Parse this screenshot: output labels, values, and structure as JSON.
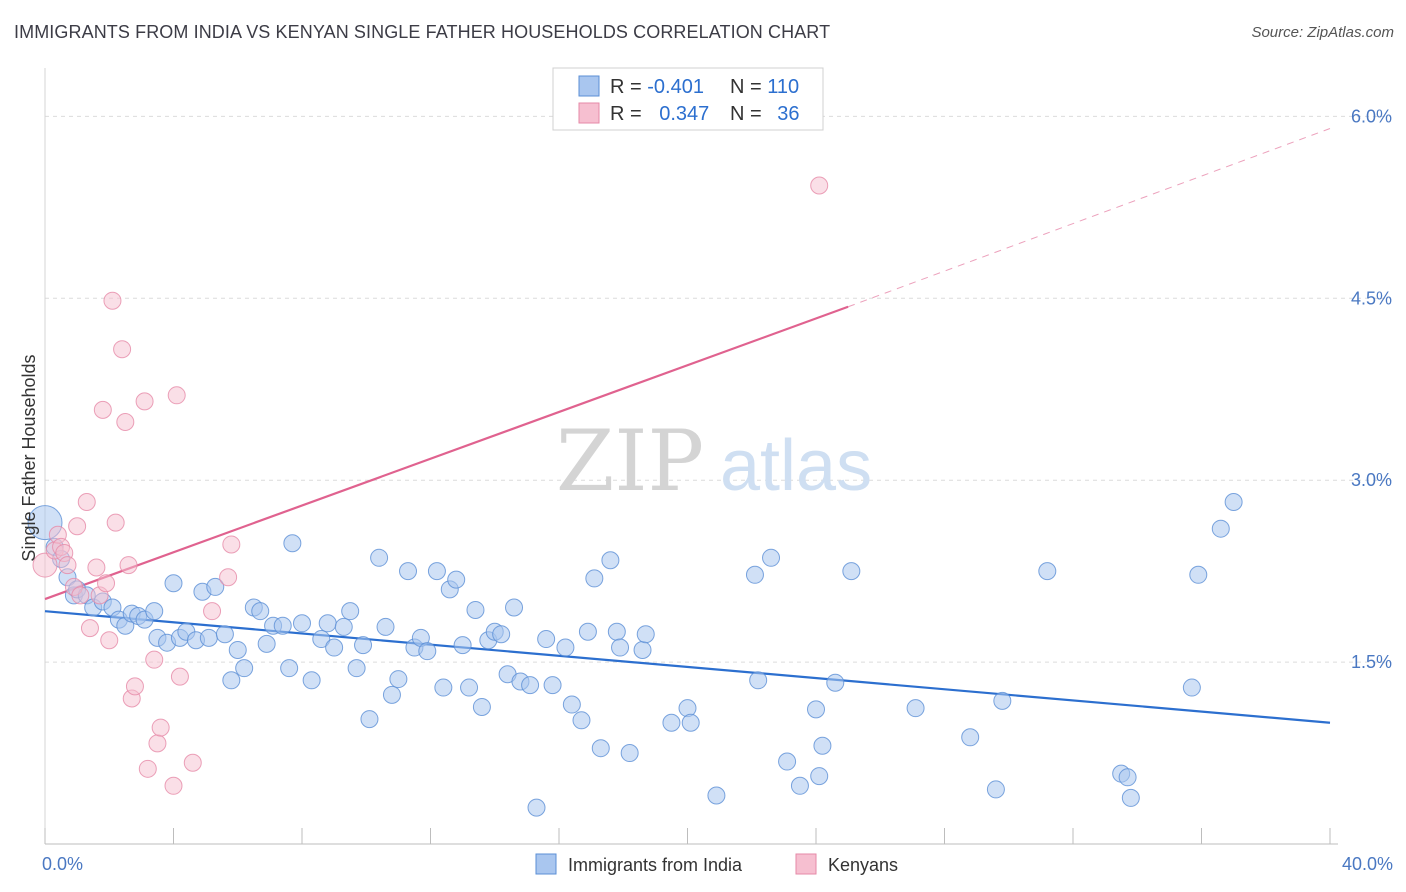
{
  "title": "IMMIGRANTS FROM INDIA VS KENYAN SINGLE FATHER HOUSEHOLDS CORRELATION CHART",
  "source": "Source: ZipAtlas.com",
  "watermark": {
    "zip": "ZIP",
    "atlas": "atlas"
  },
  "colors": {
    "blue_fill": "#a9c6ef",
    "blue_stroke": "#5b8fd6",
    "blue_line": "#2c6fcf",
    "pink_fill": "#f6bfd0",
    "pink_stroke": "#e68aa7",
    "pink_line": "#e0628f",
    "tick_text": "#4a78c2",
    "grid": "#dcdcdc"
  },
  "legend": {
    "rows": [
      {
        "r_label": "R = ",
        "r_value": "-0.401",
        "n_label": "N = ",
        "n_value": "110"
      },
      {
        "r_label": "R = ",
        "r_value": "0.347",
        "n_label": "N = ",
        "n_value": "36"
      }
    ]
  },
  "chart_data": {
    "type": "scatter",
    "ylabel": "Single Father Households",
    "xlim": [
      0,
      40
    ],
    "ylim": [
      0,
      6.3
    ],
    "x_tick_labels": [
      "0.0%",
      "40.0%"
    ],
    "y_ticks": [
      {
        "value": 1.5,
        "label": "1.5%"
      },
      {
        "value": 3.0,
        "label": "3.0%"
      },
      {
        "value": 4.5,
        "label": "4.5%"
      },
      {
        "value": 6.0,
        "label": "6.0%"
      }
    ],
    "series": [
      {
        "name": "Immigrants from India",
        "color": "#a9c6ef",
        "points": [
          [
            0.0,
            2.65
          ],
          [
            0.3,
            2.45
          ],
          [
            0.5,
            2.35
          ],
          [
            0.7,
            2.2
          ],
          [
            0.9,
            2.05
          ],
          [
            1.0,
            2.1
          ],
          [
            1.3,
            2.05
          ],
          [
            1.5,
            1.95
          ],
          [
            1.8,
            2.0
          ],
          [
            2.1,
            1.95
          ],
          [
            2.3,
            1.85
          ],
          [
            2.5,
            1.8
          ],
          [
            2.7,
            1.9
          ],
          [
            2.9,
            1.88
          ],
          [
            3.1,
            1.85
          ],
          [
            3.4,
            1.92
          ],
          [
            3.5,
            1.7
          ],
          [
            3.8,
            1.66
          ],
          [
            4.0,
            2.15
          ],
          [
            4.2,
            1.7
          ],
          [
            4.4,
            1.75
          ],
          [
            4.7,
            1.68
          ],
          [
            4.9,
            2.08
          ],
          [
            5.1,
            1.7
          ],
          [
            5.3,
            2.12
          ],
          [
            5.6,
            1.73
          ],
          [
            5.8,
            1.35
          ],
          [
            6.0,
            1.6
          ],
          [
            6.2,
            1.45
          ],
          [
            6.5,
            1.95
          ],
          [
            6.7,
            1.92
          ],
          [
            6.9,
            1.65
          ],
          [
            7.1,
            1.8
          ],
          [
            7.4,
            1.8
          ],
          [
            7.6,
            1.45
          ],
          [
            7.7,
            2.48
          ],
          [
            8.0,
            1.82
          ],
          [
            8.3,
            1.35
          ],
          [
            8.6,
            1.69
          ],
          [
            8.8,
            1.82
          ],
          [
            9.0,
            1.62
          ],
          [
            9.3,
            1.79
          ],
          [
            9.5,
            1.92
          ],
          [
            9.7,
            1.45
          ],
          [
            9.9,
            1.64
          ],
          [
            10.1,
            1.03
          ],
          [
            10.4,
            2.36
          ],
          [
            10.6,
            1.79
          ],
          [
            10.8,
            1.23
          ],
          [
            11.0,
            1.36
          ],
          [
            11.3,
            2.25
          ],
          [
            11.5,
            1.62
          ],
          [
            11.7,
            1.7
          ],
          [
            11.9,
            1.59
          ],
          [
            12.2,
            2.25
          ],
          [
            12.4,
            1.29
          ],
          [
            12.6,
            2.1
          ],
          [
            12.8,
            2.18
          ],
          [
            13.0,
            1.64
          ],
          [
            13.2,
            1.29
          ],
          [
            13.4,
            1.93
          ],
          [
            13.6,
            1.13
          ],
          [
            13.8,
            1.68
          ],
          [
            14.0,
            1.75
          ],
          [
            14.2,
            1.73
          ],
          [
            14.4,
            1.4
          ],
          [
            14.6,
            1.95
          ],
          [
            14.8,
            1.34
          ],
          [
            15.1,
            1.31
          ],
          [
            15.3,
            0.3
          ],
          [
            15.6,
            1.69
          ],
          [
            15.8,
            1.31
          ],
          [
            16.2,
            1.62
          ],
          [
            16.4,
            1.15
          ],
          [
            16.7,
            1.02
          ],
          [
            16.9,
            1.75
          ],
          [
            17.1,
            2.19
          ],
          [
            17.3,
            0.79
          ],
          [
            17.6,
            2.34
          ],
          [
            17.8,
            1.75
          ],
          [
            17.9,
            1.62
          ],
          [
            18.2,
            0.75
          ],
          [
            18.6,
            1.6
          ],
          [
            18.7,
            1.73
          ],
          [
            19.5,
            1.0
          ],
          [
            20.0,
            1.12
          ],
          [
            20.1,
            1.0
          ],
          [
            20.9,
            0.4
          ],
          [
            22.1,
            2.22
          ],
          [
            22.2,
            1.35
          ],
          [
            22.6,
            2.36
          ],
          [
            23.1,
            0.68
          ],
          [
            23.5,
            0.48
          ],
          [
            24.0,
            1.11
          ],
          [
            24.1,
            0.56
          ],
          [
            24.2,
            0.81
          ],
          [
            24.6,
            1.33
          ],
          [
            25.1,
            2.25
          ],
          [
            27.1,
            1.12
          ],
          [
            28.8,
            0.88
          ],
          [
            29.6,
            0.45
          ],
          [
            29.8,
            1.18
          ],
          [
            31.2,
            2.25
          ],
          [
            33.5,
            0.58
          ],
          [
            33.7,
            0.55
          ],
          [
            33.8,
            0.38
          ],
          [
            35.7,
            1.29
          ],
          [
            35.9,
            2.22
          ],
          [
            36.6,
            2.6
          ],
          [
            37.0,
            2.82
          ]
        ],
        "trend": {
          "x0": 0,
          "y0": 1.92,
          "x1": 40,
          "y1": 1.0
        }
      },
      {
        "name": "Kenyans",
        "color": "#f6bfd0",
        "points": [
          [
            0.0,
            2.3
          ],
          [
            0.3,
            2.42
          ],
          [
            0.4,
            2.55
          ],
          [
            0.5,
            2.45
          ],
          [
            0.6,
            2.4
          ],
          [
            0.7,
            2.3
          ],
          [
            0.9,
            2.12
          ],
          [
            1.0,
            2.62
          ],
          [
            1.1,
            2.05
          ],
          [
            1.3,
            2.82
          ],
          [
            1.4,
            1.78
          ],
          [
            1.6,
            2.28
          ],
          [
            1.7,
            2.05
          ],
          [
            1.8,
            3.58
          ],
          [
            1.9,
            2.15
          ],
          [
            2.0,
            1.68
          ],
          [
            2.1,
            4.48
          ],
          [
            2.2,
            2.65
          ],
          [
            2.4,
            4.08
          ],
          [
            2.5,
            3.48
          ],
          [
            2.6,
            2.3
          ],
          [
            2.7,
            1.2
          ],
          [
            2.8,
            1.3
          ],
          [
            3.1,
            3.65
          ],
          [
            3.2,
            0.62
          ],
          [
            3.4,
            1.52
          ],
          [
            3.5,
            0.83
          ],
          [
            3.6,
            0.96
          ],
          [
            4.0,
            0.48
          ],
          [
            4.1,
            3.7
          ],
          [
            4.2,
            1.38
          ],
          [
            4.6,
            0.67
          ],
          [
            5.2,
            1.92
          ],
          [
            5.7,
            2.2
          ],
          [
            5.8,
            2.47
          ],
          [
            24.1,
            5.43
          ]
        ],
        "trend": {
          "x0": 0,
          "y0": 2.02,
          "x1": 25.0,
          "y1": 4.43
        },
        "trend_extension": {
          "x0": 25.0,
          "y0": 4.43,
          "x1": 40,
          "y1": 5.9
        }
      }
    ]
  },
  "bottom_legend": [
    {
      "label": "Immigrants from India",
      "color": "#a9c6ef"
    },
    {
      "label": "Kenyans",
      "color": "#f6bfd0"
    }
  ]
}
